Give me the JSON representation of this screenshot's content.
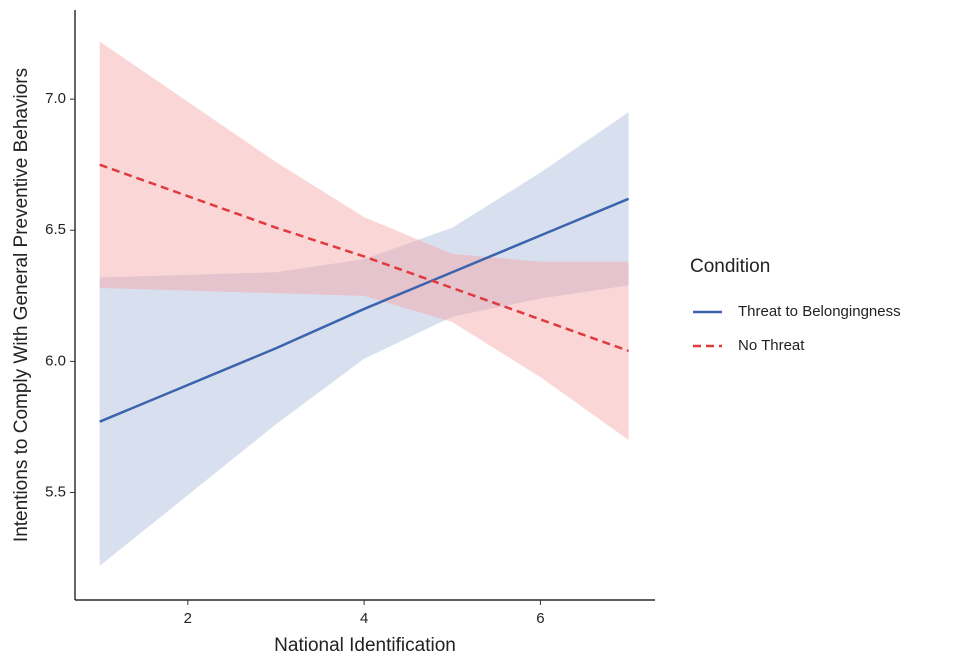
{
  "chart_data": {
    "type": "line",
    "x_label": "National Identification",
    "y_label": "Intentions to Comply With General Preventive Behaviors",
    "legend_title": "Condition",
    "legend_position": "right",
    "x": [
      1,
      2,
      3,
      4,
      5,
      6,
      7
    ],
    "series": [
      {
        "name": "Threat to Belongingness",
        "color": "#3a64ad",
        "band_color": "#a8b9da",
        "dash": "solid",
        "values": [
          5.77,
          5.91,
          6.05,
          6.2,
          6.34,
          6.48,
          6.62
        ],
        "lower": [
          5.22,
          5.49,
          5.76,
          6.01,
          6.17,
          6.24,
          6.29
        ],
        "upper": [
          6.32,
          6.33,
          6.34,
          6.39,
          6.51,
          6.72,
          6.95
        ]
      },
      {
        "name": "No Threat",
        "color": "#e03a3e",
        "band_color": "#f6a4a7",
        "dash": "dashed",
        "values": [
          6.75,
          6.63,
          6.51,
          6.4,
          6.28,
          6.16,
          6.04
        ],
        "lower": [
          6.28,
          6.27,
          6.26,
          6.25,
          6.15,
          5.94,
          5.7
        ],
        "upper": [
          7.22,
          6.99,
          6.76,
          6.55,
          6.41,
          6.38,
          6.38
        ]
      }
    ],
    "xlim": [
      0.72,
      7.3
    ],
    "ylim": [
      5.09,
      7.34
    ],
    "xticks": [
      2,
      4,
      6
    ],
    "yticks": [
      {
        "value": 5.5,
        "label": "5.5"
      },
      {
        "value": 6,
        "label": "6.0"
      },
      {
        "value": 6.5,
        "label": "6.5"
      },
      {
        "value": 7,
        "label": "7.0"
      }
    ]
  }
}
